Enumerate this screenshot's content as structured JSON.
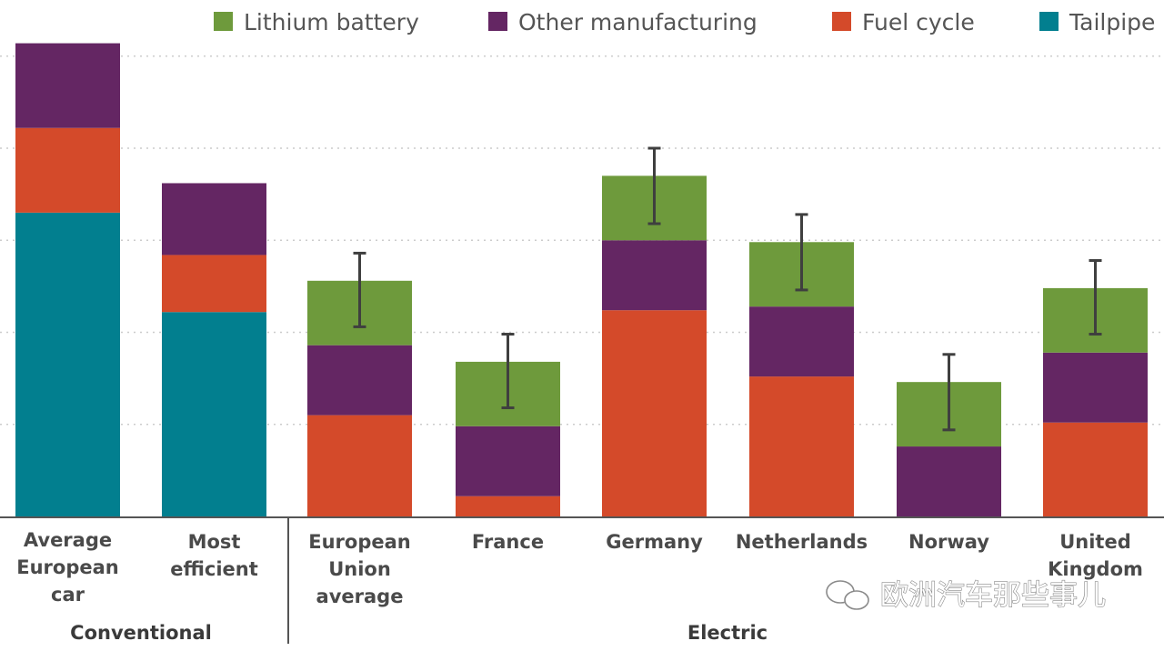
{
  "chart_data": {
    "type": "bar",
    "stacked": true,
    "legend": [
      "Lithium battery",
      "Other manufacturing",
      "Fuel cycle",
      "Tailpipe"
    ],
    "colors": {
      "Lithium battery": "#6e9a3c",
      "Other manufacturing": "#642663",
      "Fuel cycle": "#d44a2a",
      "Tailpipe": "#027f8f",
      "error_bar": "#3f3f3f",
      "grid": "#cccccc",
      "axis": "#555555"
    },
    "legend_placement": "top",
    "grid": true,
    "ylim": [
      0,
      260
    ],
    "categories": [
      [
        "Average",
        "European",
        "car"
      ],
      [
        "Most",
        "efficient"
      ],
      [
        "European",
        "Union",
        "average"
      ],
      [
        "France"
      ],
      [
        "Germany"
      ],
      [
        "Netherlands"
      ],
      [
        "Norway"
      ],
      [
        "United",
        "Kingdom"
      ]
    ],
    "groups": [
      {
        "label": "Conventional",
        "categories": [
          0,
          1
        ]
      },
      {
        "label": "Electric",
        "categories": [
          2,
          3,
          4,
          5,
          6,
          7
        ]
      }
    ],
    "series": [
      {
        "name": "Tailpipe",
        "values": [
          165,
          111,
          0,
          0,
          0,
          0,
          0,
          0
        ]
      },
      {
        "name": "Fuel cycle",
        "values": [
          46,
          31,
          55,
          11,
          112,
          76,
          0,
          51
        ]
      },
      {
        "name": "Other manufacturing",
        "values": [
          46,
          39,
          38,
          38,
          38,
          38,
          38,
          38
        ]
      },
      {
        "name": "Lithium battery",
        "values": [
          0,
          0,
          35,
          35,
          35,
          35,
          35,
          35
        ]
      }
    ],
    "error_bars": [
      null,
      null,
      [
        103,
        143
      ],
      [
        59,
        99
      ],
      [
        159,
        200
      ],
      [
        123,
        164
      ],
      [
        47,
        88
      ],
      [
        99,
        139
      ]
    ]
  },
  "watermark": "欧洲汽车那些事儿"
}
